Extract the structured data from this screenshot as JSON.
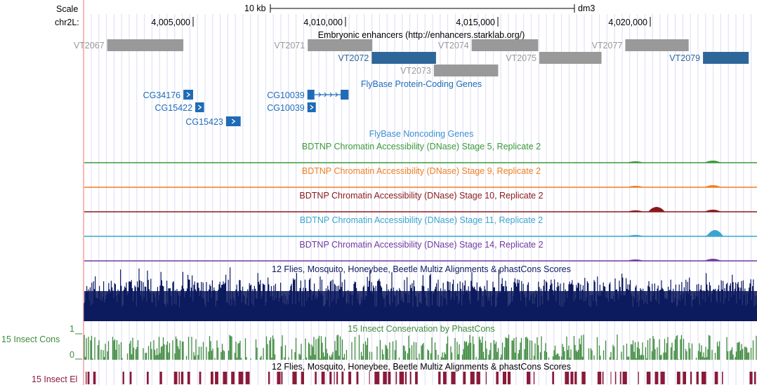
{
  "ruler": {
    "scale_label": "Scale",
    "chrom_label": "chr2L:",
    "scale_bar_label": "10 kb",
    "assembly": "dm3",
    "positions": [
      {
        "label": "4,005,000",
        "pos": 4005000
      },
      {
        "label": "4,010,000",
        "pos": 4010000
      },
      {
        "label": "4,015,000",
        "pos": 4015000
      },
      {
        "label": "4,020,000",
        "pos": 4020000
      }
    ]
  },
  "tracks": {
    "enhancers": {
      "title": "Embryonic enhancers (http://enhancers.starklab.org/)",
      "colors": {
        "gray": "#999999",
        "blue": "#2e6699"
      },
      "items": [
        {
          "name": "VT2067",
          "start": 4002180,
          "end": 4004680,
          "row": 0,
          "color": "gray"
        },
        {
          "name": "VT2071",
          "start": 4008760,
          "end": 4010880,
          "row": 0,
          "color": "gray"
        },
        {
          "name": "VT2074",
          "start": 4014140,
          "end": 4016320,
          "row": 0,
          "color": "gray"
        },
        {
          "name": "VT2077",
          "start": 4019180,
          "end": 4021260,
          "row": 0,
          "color": "gray"
        },
        {
          "name": "VT2072",
          "start": 4010860,
          "end": 4012970,
          "row": 1,
          "color": "blue"
        },
        {
          "name": "VT2075",
          "start": 4016360,
          "end": 4018400,
          "row": 1,
          "color": "blue_gray"
        },
        {
          "name": "VT2079",
          "start": 4021730,
          "end": 4023230,
          "row": 1,
          "color": "blue"
        },
        {
          "name": "VT2073",
          "start": 4012900,
          "end": 4015010,
          "row": 2,
          "color": "gray"
        }
      ]
    },
    "protein_genes": {
      "title": "FlyBase Protein-Coding Genes",
      "color": "#1f6bb6",
      "items": [
        {
          "name": "CG34176",
          "start": 4004680,
          "end": 4005000,
          "row": 0
        },
        {
          "name": "CG15422",
          "start": 4005070,
          "end": 4005360,
          "row": 1
        },
        {
          "name": "CG10039",
          "start": 4008750,
          "end": 4010100,
          "row": 0,
          "exon2_start": 4009840
        },
        {
          "name": "CG10039",
          "start": 4008750,
          "end": 4009020,
          "row": 1
        },
        {
          "name": "CG15423",
          "start": 4006080,
          "end": 4006560,
          "row": 2
        }
      ]
    },
    "noncoding_genes": {
      "title": "FlyBase Noncoding Genes",
      "color": "#3d8fd1"
    },
    "dnase": [
      {
        "title": "BDTNP Chromatin Accessibility (DNase) Stage 5, Replicate 2",
        "color": "#3a9a3a"
      },
      {
        "title": "BDTNP Chromatin Accessibility (DNase) Stage 9, Replicate 2",
        "color": "#f07f22"
      },
      {
        "title": "BDTNP Chromatin Accessibility (DNase) Stage 10, Replicate 2",
        "color": "#8a1a1a"
      },
      {
        "title": "BDTNP Chromatin Accessibility (DNase) Stage 11, Replicate 2",
        "color": "#3aa6cf"
      },
      {
        "title": "BDTNP Chromatin Accessibility (DNase) Stage 14, Replicate 2",
        "color": "#6f3aa0"
      }
    ],
    "multiz": {
      "title": "12 Flies, Mosquito, Honeybee, Beetle Multiz Alignments & phastCons Scores",
      "color": "#0c1a5e"
    },
    "insect_cons": {
      "title": "15 Insect Conservation by PhastCons",
      "side_label": "15 Insect Cons",
      "max_label": "1",
      "min_label": "0",
      "color": "#3f8a3f"
    },
    "insect_el": {
      "title": "12 Flies, Mosquito, Honeybee, Beetle Multiz Alignments & phastCons Scores",
      "side_label": "15 Insect El",
      "color": "#8a1a3a"
    }
  },
  "colors": {
    "side_label_green": "#3f8a3f",
    "side_label_red": "#8a1a3a",
    "ruler_line": "#000000",
    "grid": "#c8c8f0",
    "left_border": "#f4a0a0"
  }
}
